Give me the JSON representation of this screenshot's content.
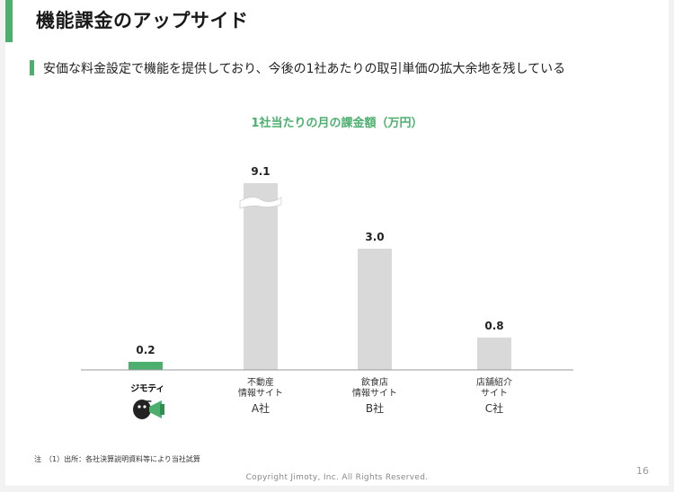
{
  "slide": {
    "title": "機能課金のアップサイド",
    "subtitle": "安価な料金設定で機能を提供しており、今後の1社あたりの取引単価の拡大余地を残している",
    "footnote": "注　（1）出所：各社決算説明資料等により当社試算",
    "copyright": "Copyright Jimoty, Inc. All Rights Reserved.",
    "page_number": "16"
  },
  "logo": {
    "text": "ジモティー",
    "icon": "jimoty-megaphone-icon"
  },
  "colors": {
    "accent": "#4caf6e",
    "bar_gray": "#d9d9d9"
  },
  "chart_data": {
    "type": "bar",
    "title": "1社当たりの月の課金額（万円）",
    "categories": [
      "ジモティー",
      "不動産情報サイト A社",
      "飲食店情報サイト B社",
      "店舗紹介サイト C社"
    ],
    "values": [
      0.2,
      9.1,
      3.0,
      0.8
    ],
    "value_labels": [
      "0.2",
      "9.1",
      "3.0",
      "0.8"
    ],
    "axis_break_on": [
      1
    ],
    "category_labels": [
      {
        "lines": [],
        "company": ""
      },
      {
        "lines": [
          "不動産",
          "情報サイト"
        ],
        "company": "A社"
      },
      {
        "lines": [
          "飲食店",
          "情報サイト"
        ],
        "company": "B社"
      },
      {
        "lines": [
          "店舗紹介",
          "サイト"
        ],
        "company": "C社"
      }
    ],
    "highlight_index": 0
  }
}
